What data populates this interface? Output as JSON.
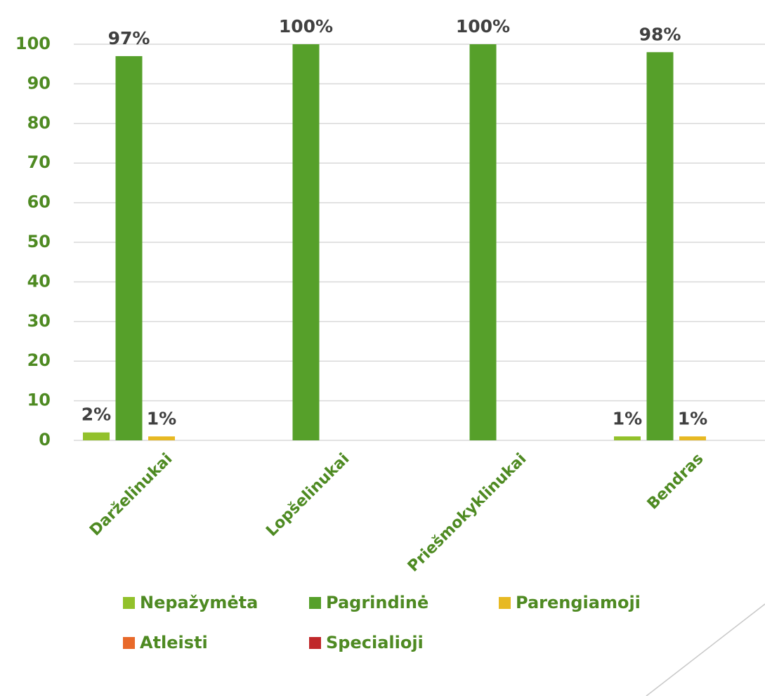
{
  "chart_data": {
    "type": "bar",
    "categories": [
      "Darželinukai",
      "Lopšelinukai",
      "Priešmokyklinukai",
      "Bendras"
    ],
    "series": [
      {
        "name": "Nepažymėta",
        "color": "#92c12b",
        "values": [
          2,
          0,
          0,
          1
        ],
        "value_labels": [
          "2%",
          null,
          null,
          "1%"
        ]
      },
      {
        "name": "Pagrindinė",
        "color": "#56a02a",
        "values": [
          97,
          100,
          100,
          98
        ],
        "value_labels": [
          "97%",
          "100%",
          "100%",
          "98%"
        ]
      },
      {
        "name": "Parengiamoji",
        "color": "#e7b923",
        "values": [
          1,
          0,
          0,
          1
        ],
        "value_labels": [
          "1%",
          null,
          null,
          "1%"
        ]
      },
      {
        "name": "Atleisti",
        "color": "#e8692a",
        "values": [
          0,
          0,
          0,
          0
        ],
        "value_labels": [
          null,
          null,
          null,
          null
        ]
      },
      {
        "name": "Specialioji",
        "color": "#c0282a",
        "values": [
          0,
          0,
          0,
          0
        ],
        "value_labels": [
          null,
          null,
          null,
          null
        ]
      }
    ],
    "ylim": [
      0,
      100
    ],
    "yticks": [
      0,
      10,
      20,
      30,
      40,
      50,
      60,
      70,
      80,
      90,
      100
    ],
    "grid": true
  }
}
